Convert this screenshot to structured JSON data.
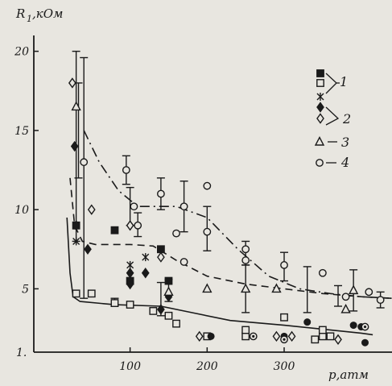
{
  "chart_data": {
    "type": "scatter",
    "title": "",
    "ylabel": "R₁, кОм",
    "ylabel_main": "R",
    "ylabel_sub": "1",
    "ylabel_unit": ",кОм",
    "xlabel": "p,атм",
    "xlim": [
      -25,
      440
    ],
    "ylim": [
      1,
      21
    ],
    "y_origin_label": "1.",
    "xticks": [
      100,
      200,
      300
    ],
    "yticks": [
      5,
      10,
      15,
      20
    ],
    "grid": false,
    "legend_position": "top-right",
    "legend": [
      {
        "symbols": [
          "filled-square",
          "open-square",
          "asterisk"
        ],
        "label": "1"
      },
      {
        "symbols": [
          "filled-diamond",
          "open-diamond"
        ],
        "label": "2"
      },
      {
        "symbols": [
          "open-triangle"
        ],
        "label": "3"
      },
      {
        "symbols": [
          "open-circle"
        ],
        "label": "4"
      }
    ],
    "series": [
      {
        "marker": "open-square",
        "points": [
          [
            30,
            4.7
          ],
          [
            50,
            4.7
          ],
          [
            80,
            4.1
          ],
          [
            100,
            4.0
          ],
          [
            130,
            3.6
          ],
          [
            150,
            3.3
          ],
          [
            160,
            2.8
          ],
          [
            200,
            2.0
          ],
          [
            250,
            2.0
          ],
          [
            250,
            2.4
          ],
          [
            300,
            3.2
          ],
          [
            340,
            1.8
          ],
          [
            350,
            2.0
          ],
          [
            360,
            2.0
          ],
          [
            350,
            2.4
          ]
        ]
      },
      {
        "marker": "filled-square",
        "points": [
          [
            30,
            9.0
          ],
          [
            80,
            8.7
          ],
          [
            100,
            5.5
          ],
          [
            140,
            7.5
          ],
          [
            150,
            5.5
          ]
        ]
      },
      {
        "marker": "asterisk",
        "points": [
          [
            30,
            8.0
          ],
          [
            100,
            6.5
          ],
          [
            120,
            7.0
          ]
        ]
      },
      {
        "marker": "filled-diamond",
        "points": [
          [
            28,
            14.0
          ],
          [
            30,
            9.0
          ],
          [
            45,
            7.5
          ],
          [
            100,
            6.0
          ],
          [
            150,
            4.5
          ],
          [
            100,
            5.3
          ],
          [
            120,
            6.0
          ],
          [
            140,
            3.7
          ]
        ]
      },
      {
        "marker": "open-diamond",
        "points": [
          [
            25,
            18.0
          ],
          [
            50,
            10.0
          ],
          [
            100,
            9.0
          ],
          [
            140,
            7.0
          ],
          [
            190,
            2.0
          ],
          [
            290,
            2.0
          ],
          [
            310,
            2.0
          ],
          [
            370,
            1.8
          ]
        ]
      },
      {
        "marker": "open-triangle",
        "points": [
          [
            30,
            16.5
          ],
          [
            150,
            4.8
          ],
          [
            200,
            5.0
          ],
          [
            250,
            5.0
          ],
          [
            290,
            5.0
          ],
          [
            380,
            3.7
          ],
          [
            390,
            4.9
          ]
        ]
      },
      {
        "marker": "open-circle",
        "points": [
          [
            40,
            13.0
          ],
          [
            95,
            12.5
          ],
          [
            105,
            10.2
          ],
          [
            140,
            11.0
          ],
          [
            170,
            10.2
          ],
          [
            200,
            11.5
          ],
          [
            200,
            8.6
          ],
          [
            250,
            7.5
          ],
          [
            250,
            6.8
          ],
          [
            300,
            6.5
          ],
          [
            350,
            6.0
          ],
          [
            380,
            4.5
          ],
          [
            410,
            4.8
          ],
          [
            425,
            4.3
          ],
          [
            110,
            9.0
          ],
          [
            170,
            6.7
          ],
          [
            160,
            8.5
          ]
        ]
      },
      {
        "marker": "filled-circle",
        "points": [
          [
            205,
            2.0
          ],
          [
            300,
            2.0
          ],
          [
            330,
            2.9
          ],
          [
            400,
            2.6
          ],
          [
            405,
            1.6
          ],
          [
            390,
            2.7
          ]
        ]
      },
      {
        "marker": "circled-dot",
        "points": [
          [
            260,
            2.0
          ],
          [
            300,
            1.8
          ],
          [
            405,
            2.6
          ]
        ]
      }
    ],
    "error_bars": [
      [
        30,
        8.0,
        20.0
      ],
      [
        33,
        12.0,
        18.0
      ],
      [
        40,
        4.4,
        19.6
      ],
      [
        95,
        11.6,
        13.4
      ],
      [
        100,
        9.0,
        11.4
      ],
      [
        140,
        10.0,
        12.0
      ],
      [
        170,
        8.6,
        11.8
      ],
      [
        200,
        7.4,
        10.2
      ],
      [
        250,
        6.5,
        8.0
      ],
      [
        300,
        5.5,
        7.3
      ],
      [
        330,
        3.5,
        6.4
      ],
      [
        370,
        3.9,
        5.2
      ],
      [
        390,
        3.6,
        6.2
      ],
      [
        425,
        3.8,
        4.8
      ],
      [
        250,
        3.5,
        6.5
      ],
      [
        140,
        3.3,
        5.4
      ],
      [
        80,
        3.9,
        4.4
      ],
      [
        110,
        8.3,
        9.8
      ],
      [
        150,
        4.2,
        5.6
      ]
    ],
    "curves": [
      {
        "curve": "1",
        "style": "solid",
        "points": [
          [
            18,
            9.5
          ],
          [
            22,
            6.0
          ],
          [
            26,
            4.5
          ],
          [
            35,
            4.2
          ],
          [
            80,
            4.0
          ],
          [
            140,
            3.9
          ],
          [
            180,
            3.5
          ],
          [
            230,
            3.0
          ],
          [
            300,
            2.7
          ],
          [
            400,
            2.2
          ],
          [
            415,
            2.1
          ]
        ]
      },
      {
        "curve": "2",
        "style": "dashed",
        "points": [
          [
            22,
            12.0
          ],
          [
            28,
            9.0
          ],
          [
            38,
            8.0
          ],
          [
            55,
            7.8
          ],
          [
            100,
            7.8
          ],
          [
            130,
            7.7
          ],
          [
            160,
            6.8
          ],
          [
            200,
            5.8
          ],
          [
            250,
            5.3
          ],
          [
            300,
            5.0
          ],
          [
            350,
            4.7
          ],
          [
            400,
            4.5
          ],
          [
            440,
            4.4
          ]
        ]
      },
      {
        "curve": "4",
        "style": "dash-dot",
        "points": [
          [
            40,
            15.0
          ],
          [
            60,
            13.0
          ],
          [
            85,
            11.2
          ],
          [
            110,
            10.2
          ],
          [
            160,
            10.2
          ],
          [
            200,
            9.5
          ],
          [
            240,
            7.5
          ],
          [
            280,
            5.8
          ],
          [
            320,
            5.0
          ],
          [
            360,
            4.7
          ],
          [
            400,
            4.5
          ],
          [
            440,
            4.4
          ]
        ]
      }
    ]
  }
}
